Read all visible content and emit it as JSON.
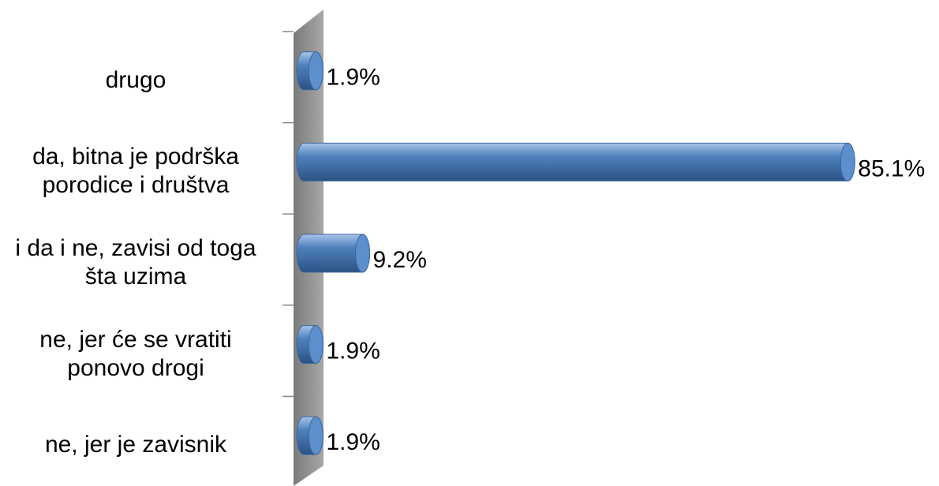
{
  "chart_data": {
    "type": "bar",
    "orientation": "horizontal",
    "categories": [
      "drugo",
      "da, bitna je podrška porodice i društva",
      "i da i ne, zavisi od toga šta uzima",
      "ne, jer će se vratiti ponovo drogi",
      "ne, jer je zavisnik"
    ],
    "values": [
      1.9,
      85.1,
      9.2,
      1.9,
      1.9
    ],
    "value_labels": [
      "1.9%",
      "85.1%",
      "9.2%",
      "1.9%",
      "1.9%"
    ],
    "color": "#4f81bd",
    "xlim": [
      0,
      100
    ]
  }
}
